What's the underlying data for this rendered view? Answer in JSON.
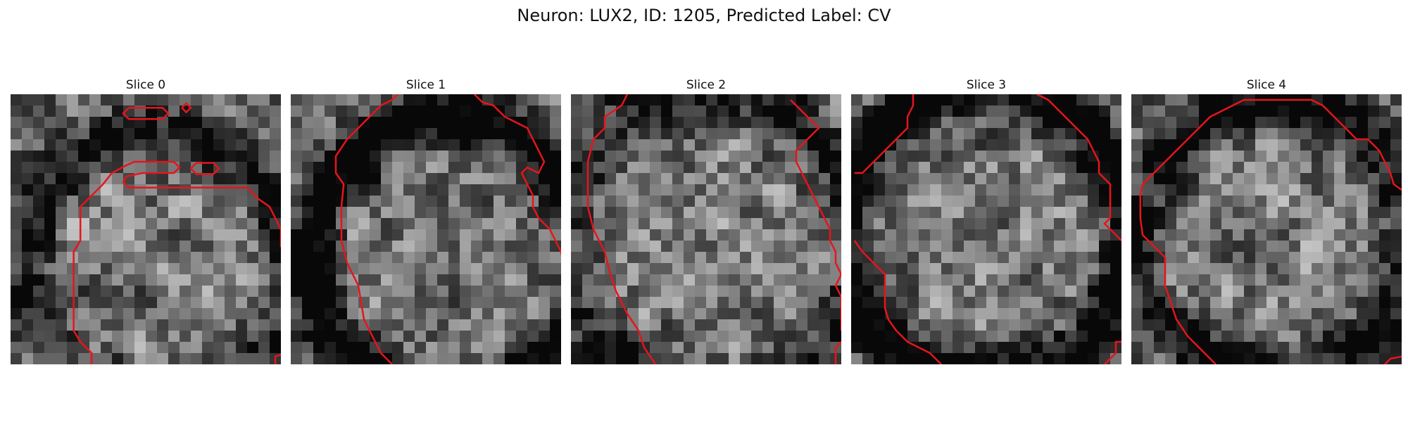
{
  "figure": {
    "title": "Neuron: LUX2, ID: 1205, Predicted Label: CV"
  },
  "contour_color": "#e8141b",
  "slices": [
    {
      "title": "Slice 0",
      "seed": 11,
      "ring": {
        "cx": 13,
        "cy": 15,
        "r": 11.5,
        "width": 2.0,
        "strength": 0.55
      },
      "contours": [
        [
          [
            10.5,
            1.2
          ],
          [
            13.5,
            1.2
          ],
          [
            14,
            1.7
          ],
          [
            13.5,
            2.2
          ],
          [
            10.5,
            2.2
          ],
          [
            10,
            1.7
          ],
          [
            10.5,
            1.2
          ]
        ],
        [
          [
            15.2,
            1.2
          ],
          [
            15.6,
            0.8
          ],
          [
            16,
            1.2
          ],
          [
            15.6,
            1.6
          ],
          [
            15.2,
            1.2
          ]
        ],
        [
          [
            16.5,
            6.1
          ],
          [
            18,
            6.1
          ],
          [
            18.5,
            6.6
          ],
          [
            18,
            7.1
          ],
          [
            16.5,
            7.1
          ],
          [
            16,
            6.6
          ],
          [
            16.5,
            6.1
          ]
        ],
        [
          [
            7.2,
            24
          ],
          [
            7.2,
            23
          ],
          [
            6.2,
            22
          ],
          [
            5.6,
            21
          ],
          [
            5.6,
            14
          ],
          [
            6.2,
            13
          ],
          [
            6.2,
            10
          ],
          [
            7.2,
            9
          ],
          [
            8.2,
            8
          ],
          [
            9,
            7
          ],
          [
            10.3,
            6.3
          ],
          [
            11,
            6
          ],
          [
            14.5,
            6
          ],
          [
            15,
            6.5
          ],
          [
            14.5,
            7
          ],
          [
            11.7,
            7
          ],
          [
            10.3,
            7.3
          ],
          [
            10,
            7.8
          ],
          [
            10.5,
            8.3
          ],
          [
            21,
            8.3
          ],
          [
            22,
            9.3
          ],
          [
            23,
            10
          ],
          [
            23.5,
            11
          ],
          [
            24,
            12
          ],
          [
            24,
            13.5
          ],
          [
            25,
            14.5
          ],
          [
            26,
            15.5
          ]
        ],
        [
          [
            23.5,
            24
          ],
          [
            23.5,
            23.3
          ],
          [
            24.5,
            23
          ],
          [
            25,
            22.5
          ],
          [
            26,
            22
          ]
        ]
      ]
    },
    {
      "title": "Slice 1",
      "seed": 23,
      "ring": {
        "cx": 14,
        "cy": 14.5,
        "r": 12.2,
        "width": 2.2,
        "strength": 0.8
      },
      "contours": [
        [
          [
            9,
            24
          ],
          [
            8,
            23
          ],
          [
            7,
            21
          ],
          [
            6.5,
            20
          ],
          [
            6,
            17
          ],
          [
            5,
            15
          ],
          [
            4.5,
            13
          ],
          [
            4.5,
            10
          ],
          [
            4.7,
            8
          ],
          [
            4,
            7
          ],
          [
            4,
            5.5
          ],
          [
            5,
            4
          ],
          [
            6,
            3
          ],
          [
            7,
            2
          ],
          [
            8,
            1
          ],
          [
            9,
            0.5
          ],
          [
            9.5,
            0
          ]
        ],
        [
          [
            16.3,
            0
          ],
          [
            17,
            0.7
          ],
          [
            18,
            1
          ],
          [
            19,
            2
          ],
          [
            20,
            2.5
          ],
          [
            21,
            3
          ],
          [
            21.5,
            4
          ],
          [
            22,
            5
          ],
          [
            22.5,
            6
          ],
          [
            22,
            7
          ],
          [
            21,
            6.5
          ],
          [
            20.5,
            7
          ],
          [
            21,
            8
          ],
          [
            21.5,
            9
          ],
          [
            21.5,
            10
          ],
          [
            22,
            11
          ],
          [
            23,
            12
          ],
          [
            23.5,
            13
          ],
          [
            24,
            14
          ],
          [
            24.2,
            15
          ],
          [
            25,
            16
          ]
        ]
      ]
    },
    {
      "title": "Slice 2",
      "seed": 37,
      "ring": {
        "cx": 12.5,
        "cy": 13.5,
        "r": 13.2,
        "width": 2.3,
        "strength": 0.45
      },
      "contours": [
        [
          [
            7.5,
            24
          ],
          [
            6.5,
            22.5
          ],
          [
            6,
            21
          ],
          [
            5,
            19.5
          ],
          [
            4,
            17.5
          ],
          [
            3.5,
            16
          ],
          [
            3,
            14
          ],
          [
            2,
            12
          ],
          [
            1.5,
            10
          ],
          [
            1.5,
            6
          ],
          [
            2,
            4
          ],
          [
            3,
            3
          ],
          [
            3,
            2
          ],
          [
            4.5,
            1
          ],
          [
            5,
            0
          ]
        ],
        [
          [
            19.5,
            0.5
          ],
          [
            20.5,
            1.5
          ],
          [
            21,
            2
          ],
          [
            22,
            3
          ],
          [
            21,
            4
          ],
          [
            20,
            5
          ],
          [
            20,
            6
          ],
          [
            20.5,
            7
          ],
          [
            21,
            8
          ],
          [
            21.5,
            9
          ],
          [
            22,
            10
          ],
          [
            22.5,
            11
          ],
          [
            23,
            12
          ],
          [
            23,
            13
          ],
          [
            23.5,
            14
          ],
          [
            23.5,
            15
          ],
          [
            24,
            16
          ],
          [
            23.5,
            17
          ],
          [
            24,
            18
          ],
          [
            24,
            19
          ],
          [
            24,
            20
          ],
          [
            24,
            21
          ]
        ],
        [
          [
            23.5,
            24
          ],
          [
            23.5,
            23
          ],
          [
            23.5,
            22.5
          ],
          [
            24,
            22
          ]
        ]
      ]
    },
    {
      "title": "Slice 3",
      "seed": 41,
      "ring": {
        "cx": 12,
        "cy": 12.5,
        "r": 13.0,
        "width": 2.4,
        "strength": 0.85
      },
      "contours": [
        [
          [
            0.3,
            7
          ],
          [
            1,
            7
          ],
          [
            2,
            6
          ],
          [
            3,
            5
          ],
          [
            4,
            4
          ],
          [
            5,
            3
          ],
          [
            5,
            2
          ],
          [
            5.5,
            1
          ],
          [
            5.5,
            0
          ]
        ],
        [
          [
            16.5,
            0
          ],
          [
            17.5,
            0.5
          ],
          [
            18,
            1
          ],
          [
            19,
            2
          ],
          [
            20,
            3
          ],
          [
            21,
            4
          ],
          [
            21.5,
            5
          ],
          [
            22,
            6
          ],
          [
            22,
            7
          ],
          [
            23,
            8
          ],
          [
            23,
            9
          ],
          [
            23,
            10
          ],
          [
            23,
            11
          ],
          [
            22.5,
            11.5
          ],
          [
            23.5,
            12.5
          ],
          [
            24,
            13
          ]
        ],
        [
          [
            0.3,
            13
          ],
          [
            1,
            14
          ],
          [
            2,
            15
          ],
          [
            3,
            16
          ],
          [
            3,
            18
          ],
          [
            3,
            19
          ],
          [
            3.3,
            20
          ],
          [
            4,
            21
          ],
          [
            5,
            22
          ],
          [
            6,
            22.5
          ],
          [
            7,
            23
          ],
          [
            8,
            24
          ]
        ],
        [
          [
            22.5,
            24
          ],
          [
            23.5,
            23
          ],
          [
            23.5,
            22
          ],
          [
            24,
            22
          ]
        ]
      ]
    },
    {
      "title": "Slice 4",
      "seed": 53,
      "ring": {
        "cx": 12.5,
        "cy": 13,
        "r": 12.0,
        "width": 2.0,
        "strength": 0.6
      },
      "contours": [
        [
          [
            7.5,
            24
          ],
          [
            7,
            23.5
          ],
          [
            6,
            22.5
          ],
          [
            5,
            21.5
          ],
          [
            4,
            20
          ],
          [
            3.5,
            18.5
          ],
          [
            3,
            17
          ],
          [
            3,
            14.5
          ],
          [
            2,
            13.5
          ],
          [
            1,
            12.5
          ],
          [
            0.8,
            11
          ],
          [
            0.8,
            9
          ],
          [
            1,
            8
          ],
          [
            2,
            7
          ],
          [
            3,
            6
          ],
          [
            4,
            5
          ],
          [
            5,
            4
          ],
          [
            6,
            3
          ],
          [
            7,
            2
          ],
          [
            8,
            1.5
          ],
          [
            9,
            1
          ],
          [
            10,
            0.5
          ],
          [
            16,
            0.5
          ],
          [
            17,
            1
          ],
          [
            18,
            2
          ],
          [
            19,
            3
          ],
          [
            20,
            4
          ],
          [
            21,
            4
          ],
          [
            22,
            5
          ],
          [
            22.5,
            6
          ],
          [
            23,
            7
          ],
          [
            23.3,
            8
          ],
          [
            24,
            8.5
          ]
        ],
        [
          [
            22.5,
            24
          ],
          [
            23,
            23.5
          ],
          [
            24,
            23.3
          ]
        ]
      ]
    }
  ]
}
